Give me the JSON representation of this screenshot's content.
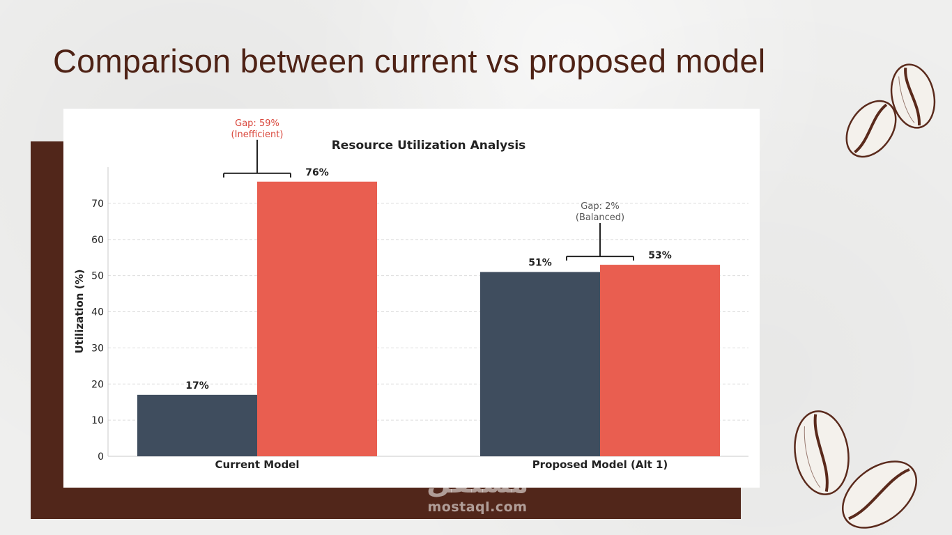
{
  "slide": {
    "title": "Comparison between current vs proposed model"
  },
  "watermark": {
    "arabic": "مستقل",
    "latin": "mostaql.com"
  },
  "colors": {
    "background": "#efefee",
    "title": "#4e2215",
    "frame": "#51261a",
    "current_series": "#3f4d5e",
    "proposed_series": "#e95e50",
    "gap_inefficient": "#d9463b",
    "gap_balanced": "#555555"
  },
  "decor": [
    "coffee-bean-icon",
    "coffee-bean-icon",
    "coffee-bean-icon",
    "coffee-bean-icon"
  ],
  "chart_data": {
    "type": "bar",
    "title": "Resource Utilization Analysis",
    "ylabel": "Utilization (%)",
    "xlabel": "",
    "categories": [
      "Current Model",
      "Proposed Model (Alt 1)"
    ],
    "series": [
      {
        "values": [
          17,
          51
        ],
        "color": "#3f4d5e"
      },
      {
        "values": [
          76,
          53
        ],
        "color": "#e95e50"
      }
    ],
    "data_labels": [
      [
        "17%",
        "51%"
      ],
      [
        "76%",
        "53%"
      ]
    ],
    "yticks": [
      0,
      10,
      20,
      30,
      40,
      50,
      60,
      70
    ],
    "ylim": [
      0,
      80
    ],
    "grid": "horizontal dashed",
    "legend": "none",
    "annotations": [
      {
        "category": "Current Model",
        "line1": "Gap: 59%",
        "line2": "(Inefficient)",
        "color": "#d9463b"
      },
      {
        "category": "Proposed Model (Alt 1)",
        "line1": "Gap: 2%",
        "line2": "(Balanced)",
        "color": "#555555"
      }
    ]
  }
}
